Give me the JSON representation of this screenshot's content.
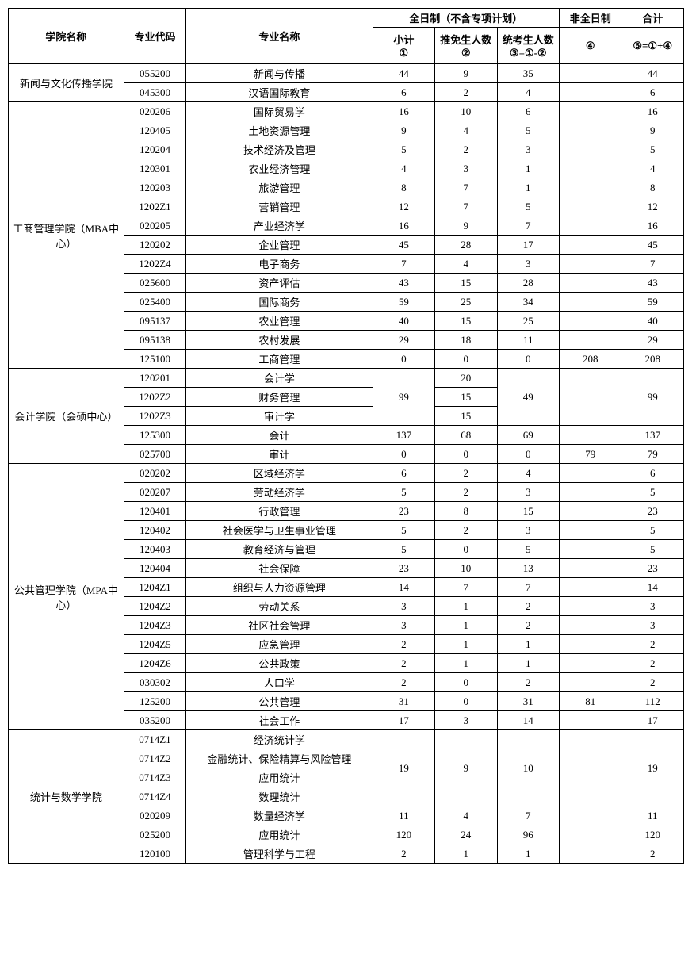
{
  "header": {
    "college": "学院名称",
    "code": "专业代码",
    "major": "专业名称",
    "fulltime": "全日制（不含专项计划）",
    "parttime": "非全日制",
    "total": "合计",
    "sub1": "小计\n①",
    "sub2": "推免生人数\n②",
    "sub3": "统考生人数\n③=①-②",
    "sub4": "④",
    "sub5": "⑤=①+④"
  },
  "groups": [
    {
      "college": "新闻与文化传播学院",
      "rows": [
        {
          "code": "055200",
          "major": "新闻与传播",
          "c1": "44",
          "c2": "9",
          "c3": "35",
          "c4": "",
          "c5": "44"
        },
        {
          "code": "045300",
          "major": "汉语国际教育",
          "c1": "6",
          "c2": "2",
          "c3": "4",
          "c4": "",
          "c5": "6"
        }
      ]
    },
    {
      "college": "工商管理学院（MBA中心）",
      "rows": [
        {
          "code": "020206",
          "major": "国际贸易学",
          "c1": "16",
          "c2": "10",
          "c3": "6",
          "c4": "",
          "c5": "16"
        },
        {
          "code": "120405",
          "major": "土地资源管理",
          "c1": "9",
          "c2": "4",
          "c3": "5",
          "c4": "",
          "c5": "9"
        },
        {
          "code": "120204",
          "major": "技术经济及管理",
          "c1": "5",
          "c2": "2",
          "c3": "3",
          "c4": "",
          "c5": "5"
        },
        {
          "code": "120301",
          "major": "农业经济管理",
          "c1": "4",
          "c2": "3",
          "c3": "1",
          "c4": "",
          "c5": "4"
        },
        {
          "code": "120203",
          "major": "旅游管理",
          "c1": "8",
          "c2": "7",
          "c3": "1",
          "c4": "",
          "c5": "8"
        },
        {
          "code": "1202Z1",
          "major": "营销管理",
          "c1": "12",
          "c2": "7",
          "c3": "5",
          "c4": "",
          "c5": "12"
        },
        {
          "code": "020205",
          "major": "产业经济学",
          "c1": "16",
          "c2": "9",
          "c3": "7",
          "c4": "",
          "c5": "16"
        },
        {
          "code": "120202",
          "major": "企业管理",
          "c1": "45",
          "c2": "28",
          "c3": "17",
          "c4": "",
          "c5": "45"
        },
        {
          "code": "1202Z4",
          "major": "电子商务",
          "c1": "7",
          "c2": "4",
          "c3": "3",
          "c4": "",
          "c5": "7"
        },
        {
          "code": "025600",
          "major": "资产评估",
          "c1": "43",
          "c2": "15",
          "c3": "28",
          "c4": "",
          "c5": "43"
        },
        {
          "code": "025400",
          "major": "国际商务",
          "c1": "59",
          "c2": "25",
          "c3": "34",
          "c4": "",
          "c5": "59"
        },
        {
          "code": "095137",
          "major": "农业管理",
          "c1": "40",
          "c2": "15",
          "c3": "25",
          "c4": "",
          "c5": "40"
        },
        {
          "code": "095138",
          "major": "农村发展",
          "c1": "29",
          "c2": "18",
          "c3": "11",
          "c4": "",
          "c5": "29"
        },
        {
          "code": "125100",
          "major": "工商管理",
          "c1": "0",
          "c2": "0",
          "c3": "0",
          "c4": "208",
          "c5": "208"
        }
      ]
    },
    {
      "college": "会计学院（会硕中心）",
      "rows": [
        {
          "code": "120201",
          "major": "会计学",
          "c2": "20",
          "merge_c1": {
            "span": 3,
            "val": "99"
          },
          "merge_c3": {
            "span": 3,
            "val": "49"
          },
          "merge_c4": {
            "span": 3,
            "val": ""
          },
          "merge_c5": {
            "span": 3,
            "val": "99"
          }
        },
        {
          "code": "1202Z2",
          "major": "财务管理",
          "c2": "15"
        },
        {
          "code": "1202Z3",
          "major": "审计学",
          "c2": "15"
        },
        {
          "code": "125300",
          "major": "会计",
          "c1": "137",
          "c2": "68",
          "c3": "69",
          "c4": "",
          "c5": "137"
        },
        {
          "code": "025700",
          "major": "审计",
          "c1": "0",
          "c2": "0",
          "c3": "0",
          "c4": "79",
          "c5": "79"
        }
      ]
    },
    {
      "college": "公共管理学院（MPA中心）",
      "rows": [
        {
          "code": "020202",
          "major": "区域经济学",
          "c1": "6",
          "c2": "2",
          "c3": "4",
          "c4": "",
          "c5": "6"
        },
        {
          "code": "020207",
          "major": "劳动经济学",
          "c1": "5",
          "c2": "2",
          "c3": "3",
          "c4": "",
          "c5": "5"
        },
        {
          "code": "120401",
          "major": "行政管理",
          "c1": "23",
          "c2": "8",
          "c3": "15",
          "c4": "",
          "c5": "23"
        },
        {
          "code": "120402",
          "major": "社会医学与卫生事业管理",
          "c1": "5",
          "c2": "2",
          "c3": "3",
          "c4": "",
          "c5": "5"
        },
        {
          "code": "120403",
          "major": "教育经济与管理",
          "c1": "5",
          "c2": "0",
          "c3": "5",
          "c4": "",
          "c5": "5"
        },
        {
          "code": "120404",
          "major": "社会保障",
          "c1": "23",
          "c2": "10",
          "c3": "13",
          "c4": "",
          "c5": "23"
        },
        {
          "code": "1204Z1",
          "major": "组织与人力资源管理",
          "c1": "14",
          "c2": "7",
          "c3": "7",
          "c4": "",
          "c5": "14"
        },
        {
          "code": "1204Z2",
          "major": "劳动关系",
          "c1": "3",
          "c2": "1",
          "c3": "2",
          "c4": "",
          "c5": "3"
        },
        {
          "code": "1204Z3",
          "major": "社区社会管理",
          "c1": "3",
          "c2": "1",
          "c3": "2",
          "c4": "",
          "c5": "3"
        },
        {
          "code": "1204Z5",
          "major": "应急管理",
          "c1": "2",
          "c2": "1",
          "c3": "1",
          "c4": "",
          "c5": "2"
        },
        {
          "code": "1204Z6",
          "major": "公共政策",
          "c1": "2",
          "c2": "1",
          "c3": "1",
          "c4": "",
          "c5": "2"
        },
        {
          "code": "030302",
          "major": "人口学",
          "c1": "2",
          "c2": "0",
          "c3": "2",
          "c4": "",
          "c5": "2"
        },
        {
          "code": "125200",
          "major": "公共管理",
          "c1": "31",
          "c2": "0",
          "c3": "31",
          "c4": "81",
          "c5": "112"
        },
        {
          "code": "035200",
          "major": "社会工作",
          "c1": "17",
          "c2": "3",
          "c3": "14",
          "c4": "",
          "c5": "17"
        }
      ]
    },
    {
      "college": "统计与数学学院",
      "rows": [
        {
          "code": "0714Z1",
          "major": "经济统计学",
          "merge_c1": {
            "span": 4,
            "val": "19"
          },
          "merge_c2": {
            "span": 4,
            "val": "9"
          },
          "merge_c3": {
            "span": 4,
            "val": "10"
          },
          "merge_c4": {
            "span": 4,
            "val": ""
          },
          "merge_c5": {
            "span": 4,
            "val": "19"
          }
        },
        {
          "code": "0714Z2",
          "major": "金融统计、保险精算与风险管理"
        },
        {
          "code": "0714Z3",
          "major": "应用统计"
        },
        {
          "code": "0714Z4",
          "major": "数理统计"
        },
        {
          "code": "020209",
          "major": "数量经济学",
          "c1": "11",
          "c2": "4",
          "c3": "7",
          "c4": "",
          "c5": "11"
        },
        {
          "code": "025200",
          "major": "应用统计",
          "c1": "120",
          "c2": "24",
          "c3": "96",
          "c4": "",
          "c5": "120"
        },
        {
          "code": "120100",
          "major": "管理科学与工程",
          "c1": "2",
          "c2": "1",
          "c3": "1",
          "c4": "",
          "c5": "2"
        }
      ]
    }
  ]
}
